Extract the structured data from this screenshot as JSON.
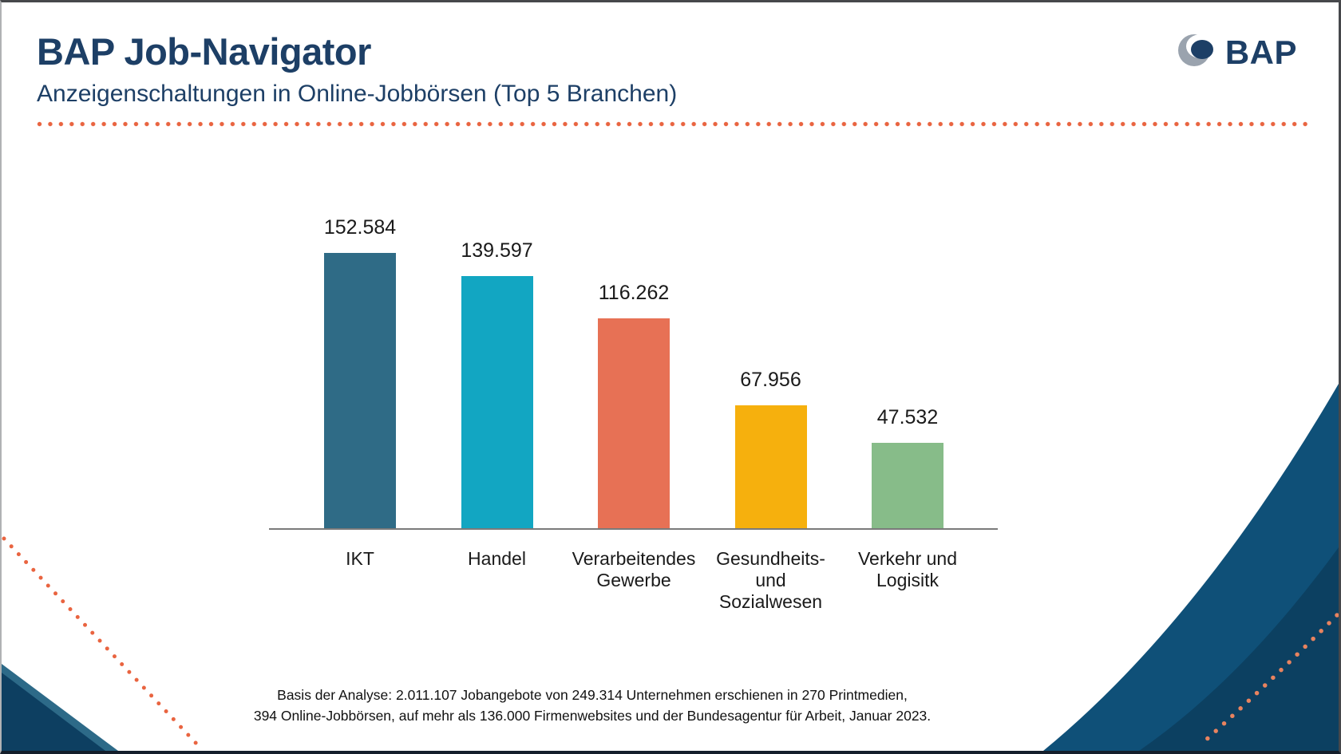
{
  "header": {
    "title": "BAP Job-Navigator",
    "subtitle": "Anzeigenschaltungen in Online-Jobbörsen (Top 5 Branchen)",
    "logo_text": "BAP"
  },
  "chart_data": {
    "type": "bar",
    "title": "Anzeigenschaltungen in Online-Jobbörsen (Top 5 Branchen)",
    "categories": [
      "IKT",
      "Handel",
      "Verarbeitendes\nGewerbe",
      "Gesundheits-\nund\nSozialwesen",
      "Verkehr und\nLogisitk"
    ],
    "values": [
      152584,
      139597,
      116262,
      67956,
      47532
    ],
    "value_labels": [
      "152.584",
      "139.597",
      "116.262",
      "67.956",
      "47.532"
    ],
    "bar_colors": [
      "#2f6b86",
      "#12a6c2",
      "#e77155",
      "#f6b00d",
      "#87bc89"
    ],
    "xlabel": "",
    "ylabel": "",
    "ylim": [
      0,
      160000
    ],
    "grid": false,
    "legend": false,
    "value_labels_position": "above-bars",
    "axis_line_color": "#7a7a7a"
  },
  "footer": {
    "line1": "Basis der Analyse: 2.011.107 Jobangebote von 249.314 Unternehmen erschienen in 270 Printmedien,",
    "line2": "394 Online-Jobbörsen, auf mehr als 136.000 Firmenwebsites und der Bundesagentur für Arbeit, Januar 2023."
  },
  "colors": {
    "accent_navy": "#1d3f66",
    "dot_orange": "#e96440",
    "axis_gray": "#7a7a7a",
    "corner_navy": "#0f5078",
    "corner_navy_dark": "#0c4061",
    "corner_triangle_dark": "#0d3f61",
    "corner_triangle_light": "#2d6a88",
    "logo_gray": "#9aa3ae"
  }
}
